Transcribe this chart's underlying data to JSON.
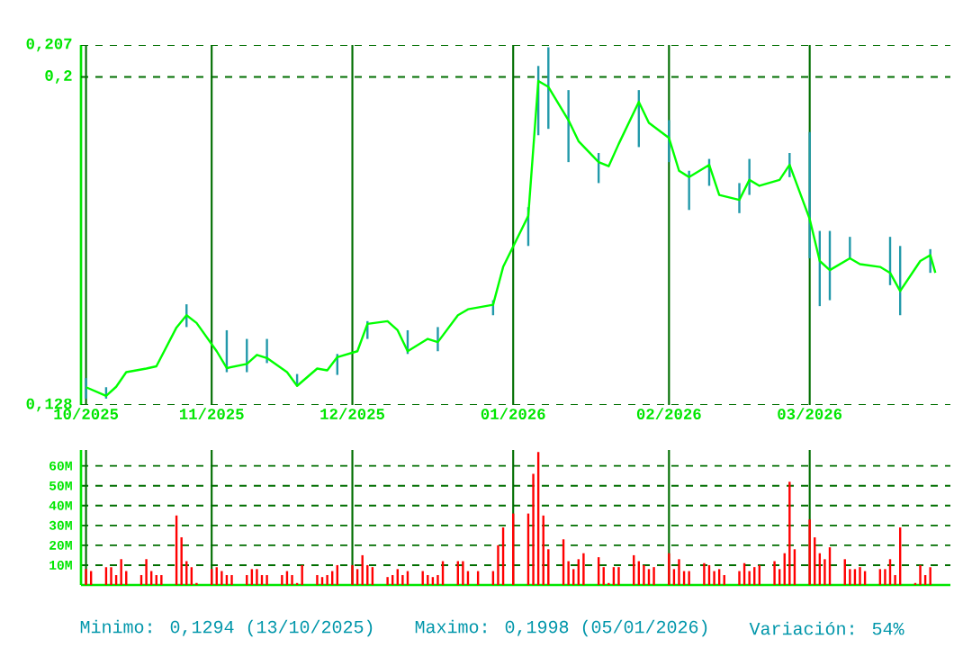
{
  "chart_data": [
    {
      "type": "line",
      "xlim": [
        "2025-10-08",
        "2026-03-30"
      ],
      "ylim": [
        0.128,
        0.207
      ],
      "grid": "x",
      "ref_lines": [
        {
          "axis": "y",
          "value": 0.128,
          "color": "#006e00",
          "line_style": "dashed"
        },
        {
          "axis": "y",
          "value": 0.2,
          "color": "#006e00",
          "line_style": "dashed"
        },
        {
          "axis": "y",
          "value": 0.207,
          "color": "#006e00",
          "line_style": "dashed"
        }
      ],
      "xticks": [
        {
          "value": "2025-10-09",
          "label": "10/2025"
        },
        {
          "value": "2025-11-03",
          "label": "11/2025"
        },
        {
          "value": "2025-12-01",
          "label": "12/2025"
        },
        {
          "value": "2026-01-02",
          "label": "01/2026"
        },
        {
          "value": "2026-02-02",
          "label": "02/2026"
        },
        {
          "value": "2026-03-02",
          "label": "03/2026"
        }
      ],
      "yticks": [
        {
          "value": 0.128,
          "label": "0,128"
        },
        {
          "value": 0.2,
          "label": "0,2"
        },
        {
          "value": 0.207,
          "label": "0,207"
        }
      ],
      "series": [
        {
          "color": "#00ff00",
          "x": [
            "2025-10-09",
            "2025-10-13",
            "2025-10-15",
            "2025-10-17",
            "2025-10-21",
            "2025-10-23",
            "2025-10-27",
            "2025-10-29",
            "2025-10-31",
            "2025-11-04",
            "2025-11-06",
            "2025-11-10",
            "2025-11-12",
            "2025-11-14",
            "2025-11-18",
            "2025-11-20",
            "2025-11-24",
            "2025-11-26",
            "2025-11-28",
            "2025-12-02",
            "2025-12-04",
            "2025-12-08",
            "2025-12-10",
            "2025-12-12",
            "2025-12-16",
            "2025-12-18",
            "2025-12-22",
            "2025-12-24",
            "2025-12-29",
            "2025-12-31",
            "2026-01-05",
            "2026-01-07",
            "2026-01-09",
            "2026-01-13",
            "2026-01-15",
            "2026-01-19",
            "2026-01-21",
            "2026-01-23",
            "2026-01-27",
            "2026-01-29",
            "2026-02-02",
            "2026-02-04",
            "2026-02-06",
            "2026-02-10",
            "2026-02-12",
            "2026-02-16",
            "2026-02-18",
            "2026-02-20",
            "2026-02-24",
            "2026-02-26",
            "2026-03-02",
            "2026-03-04",
            "2026-03-06",
            "2026-03-10",
            "2026-03-12",
            "2026-03-16",
            "2026-03-18",
            "2026-03-20",
            "2026-03-24",
            "2026-03-26",
            "2026-03-27"
          ],
          "values": [
            0.1319,
            0.13,
            0.132,
            0.1352,
            0.136,
            0.1365,
            0.145,
            0.1477,
            0.146,
            0.1398,
            0.1361,
            0.137,
            0.139,
            0.1383,
            0.1352,
            0.1322,
            0.136,
            0.1356,
            0.1385,
            0.1398,
            0.1458,
            0.1464,
            0.1444,
            0.1398,
            0.1425,
            0.1418,
            0.1477,
            0.149,
            0.15,
            0.1583,
            0.1695,
            0.1991,
            0.1978,
            0.1905,
            0.1859,
            0.1813,
            0.1804,
            0.1853,
            0.1945,
            0.1899,
            0.1866,
            0.1794,
            0.178,
            0.1807,
            0.1741,
            0.173,
            0.1774,
            0.1761,
            0.1774,
            0.1807,
            0.1688,
            0.1596,
            0.1576,
            0.1602,
            0.1589,
            0.1583,
            0.157,
            0.153,
            0.1596,
            0.1609,
            0.157
          ],
          "errors": [
            [
              0.1294,
              0.1339
            ],
            [
              0.1294,
              0.1319
            ],
            null,
            null,
            null,
            null,
            null,
            [
              0.1451,
              0.1501
            ],
            null,
            null,
            [
              0.1352,
              0.1444
            ],
            [
              0.1352,
              0.1425
            ],
            null,
            [
              0.1372,
              0.1425
            ],
            null,
            [
              0.1322,
              0.1348
            ],
            null,
            null,
            [
              0.1346,
              0.1392
            ],
            null,
            [
              0.1425,
              0.1464
            ],
            null,
            null,
            [
              0.1392,
              0.1444
            ],
            null,
            [
              0.1398,
              0.1451
            ],
            null,
            null,
            [
              0.1477,
              0.151
            ],
            null,
            [
              0.1629,
              0.1714
            ],
            [
              0.1872,
              0.2024
            ],
            [
              0.1886,
              0.2065
            ],
            [
              0.1813,
              0.1971
            ],
            null,
            [
              0.1767,
              0.1833
            ],
            null,
            null,
            [
              0.1846,
              0.1971
            ],
            null,
            [
              0.1813,
              0.1905
            ],
            null,
            [
              0.1708,
              0.1794
            ],
            [
              0.1761,
              0.182
            ],
            null,
            [
              0.1701,
              0.1767
            ],
            [
              0.1741,
              0.182
            ],
            null,
            null,
            [
              0.178,
              0.1833
            ],
            [
              0.1602,
              0.1879
            ],
            [
              0.1497,
              0.1662
            ],
            [
              0.151,
              0.1662
            ],
            [
              0.1602,
              0.1649
            ],
            null,
            null,
            [
              0.1543,
              0.1649
            ],
            [
              0.1477,
              0.1629
            ],
            null,
            [
              0.157,
              0.1622
            ],
            null
          ]
        }
      ]
    },
    {
      "type": "bar",
      "xlim": [
        "2025-10-08",
        "2026-03-30"
      ],
      "ylim": [
        0,
        68
      ],
      "grid": true,
      "tick_labels": "y",
      "color": "#ff0000",
      "xticks": [
        {
          "value": "2025-10-09",
          "label": null
        },
        {
          "value": "2025-11-03",
          "label": null
        },
        {
          "value": "2025-12-01",
          "label": null
        },
        {
          "value": "2026-01-02",
          "label": null
        },
        {
          "value": "2026-02-02",
          "label": null
        },
        {
          "value": "2026-03-02",
          "label": null
        }
      ],
      "yticks": [
        {
          "value": 10,
          "label": "10M"
        },
        {
          "value": 20,
          "label": "20M"
        },
        {
          "value": 30,
          "label": "30M"
        },
        {
          "value": 40,
          "label": "40M"
        },
        {
          "value": 50,
          "label": "50M"
        },
        {
          "value": 60,
          "label": "60M"
        }
      ],
      "x": [
        "2025-10-09",
        "2025-10-10",
        "2025-10-13",
        "2025-10-14",
        "2025-10-15",
        "2025-10-16",
        "2025-10-17",
        "2025-10-20",
        "2025-10-21",
        "2025-10-22",
        "2025-10-23",
        "2025-10-24",
        "2025-10-27",
        "2025-10-28",
        "2025-10-29",
        "2025-10-30",
        "2025-10-31",
        "2025-11-03",
        "2025-11-04",
        "2025-11-05",
        "2025-11-06",
        "2025-11-07",
        "2025-11-10",
        "2025-11-11",
        "2025-11-12",
        "2025-11-13",
        "2025-11-14",
        "2025-11-17",
        "2025-11-18",
        "2025-11-19",
        "2025-11-20",
        "2025-11-21",
        "2025-11-24",
        "2025-11-25",
        "2025-11-26",
        "2025-11-27",
        "2025-11-28",
        "2025-12-01",
        "2025-12-02",
        "2025-12-03",
        "2025-12-04",
        "2025-12-05",
        "2025-12-08",
        "2025-12-09",
        "2025-12-10",
        "2025-12-11",
        "2025-12-12",
        "2025-12-15",
        "2025-12-16",
        "2025-12-17",
        "2025-12-18",
        "2025-12-19",
        "2025-12-22",
        "2025-12-23",
        "2025-12-24",
        "2025-12-26",
        "2025-12-29",
        "2025-12-30",
        "2025-12-31",
        "2026-01-02",
        "2026-01-05",
        "2026-01-06",
        "2026-01-07",
        "2026-01-08",
        "2026-01-09",
        "2026-01-12",
        "2026-01-13",
        "2026-01-14",
        "2026-01-15",
        "2026-01-16",
        "2026-01-19",
        "2026-01-20",
        "2026-01-21",
        "2026-01-22",
        "2026-01-23",
        "2026-01-26",
        "2026-01-27",
        "2026-01-28",
        "2026-01-29",
        "2026-01-30",
        "2026-02-02",
        "2026-02-03",
        "2026-02-04",
        "2026-02-05",
        "2026-02-06",
        "2026-02-09",
        "2026-02-10",
        "2026-02-11",
        "2026-02-12",
        "2026-02-13",
        "2026-02-16",
        "2026-02-17",
        "2026-02-18",
        "2026-02-19",
        "2026-02-20",
        "2026-02-23",
        "2026-02-24",
        "2026-02-25",
        "2026-02-26",
        "2026-02-27",
        "2026-03-02",
        "2026-03-03",
        "2026-03-04",
        "2026-03-05",
        "2026-03-06",
        "2026-03-09",
        "2026-03-10",
        "2026-03-11",
        "2026-03-12",
        "2026-03-13",
        "2026-03-16",
        "2026-03-17",
        "2026-03-18",
        "2026-03-19",
        "2026-03-20",
        "2026-03-23",
        "2026-03-24",
        "2026-03-25",
        "2026-03-26"
      ],
      "values": [
        8,
        7,
        9,
        9,
        5,
        13,
        7,
        5,
        13,
        7,
        5,
        5,
        35,
        24,
        12,
        9,
        1,
        8,
        9,
        7,
        5,
        5,
        5,
        8,
        8,
        5,
        5,
        5,
        7,
        5,
        1,
        10,
        5,
        4,
        5,
        7,
        10,
        10,
        8,
        15,
        10,
        9,
        4,
        5,
        8,
        5,
        7,
        7,
        5,
        4,
        5,
        12,
        12,
        12,
        7,
        7,
        7,
        20,
        29,
        36,
        36,
        56,
        67,
        35,
        18,
        23,
        12,
        8,
        13,
        16,
        14,
        9,
        1,
        9,
        9,
        15,
        12,
        10,
        8,
        9,
        16,
        8,
        13,
        7,
        7,
        11,
        10,
        7,
        8,
        5,
        7,
        11,
        7,
        9,
        10,
        12,
        8,
        16,
        52,
        18,
        33,
        24,
        16,
        13,
        19,
        13,
        8,
        8,
        9,
        7,
        8,
        8,
        13,
        5,
        29,
        1,
        10,
        5,
        9
      ],
      "annotations": [
        "Minimo: 0,1294 (13/10/2025)",
        "Maximo: 0,1998 (05/01/2026)",
        "Variación: 54%"
      ]
    }
  ]
}
